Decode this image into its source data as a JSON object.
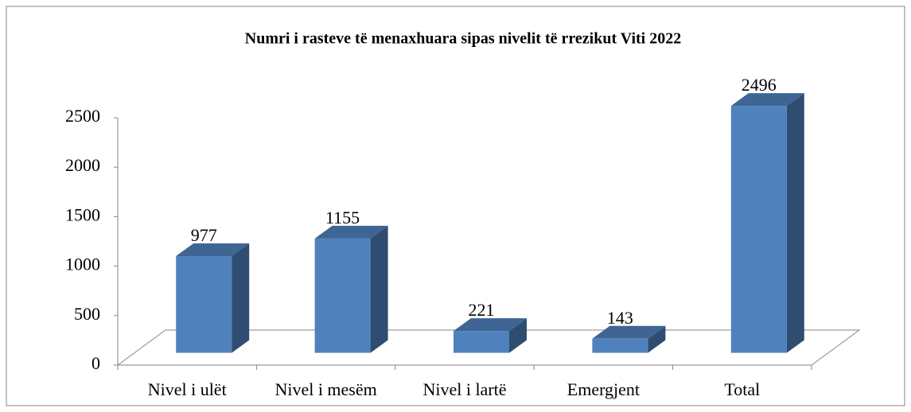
{
  "chart_data": {
    "type": "bar",
    "title": "Numri i rasteve të menaxhuara sipas nivelit të rrezikut Viti 2022",
    "categories": [
      "Nivel i ulët",
      "Nivel i mesëm",
      "Nivel i lartë",
      "Emergjent",
      "Total"
    ],
    "values": [
      977,
      1155,
      221,
      143,
      2496
    ],
    "color": "#4f81bd",
    "ylim": [
      0,
      2500
    ],
    "yticks": [
      0,
      500,
      1000,
      1500,
      2000,
      2500
    ]
  }
}
